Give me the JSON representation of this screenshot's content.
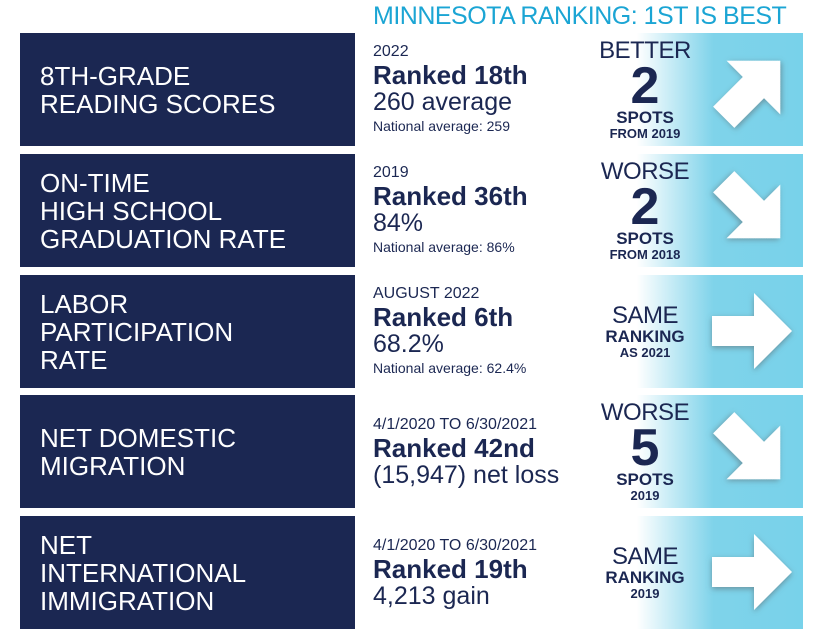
{
  "title": "MINNESOTA RANKING: 1ST IS BEST",
  "rows": [
    {
      "label": [
        "8TH-GRADE",
        "READING SCORES"
      ],
      "year": "2022",
      "rank": "Ranked 18th",
      "value": "260 average",
      "national": "National average: 259",
      "direction": "BETTER",
      "spots_num": "2",
      "spots_label": "SPOTS",
      "sub": "FROM 2019",
      "arrow": "arrow-up-right-icon"
    },
    {
      "label": [
        "ON-TIME",
        "HIGH SCHOOL",
        "GRADUATION RATE"
      ],
      "year": "2019",
      "rank": "Ranked 36th",
      "value": "84%",
      "national": "National average: 86%",
      "direction": "WORSE",
      "spots_num": "2",
      "spots_label": "SPOTS",
      "sub": "FROM 2018",
      "arrow": "arrow-down-right-icon"
    },
    {
      "label": [
        "LABOR",
        "PARTICIPATION",
        "RATE"
      ],
      "year": "AUGUST 2022",
      "rank": "Ranked 6th",
      "value": "68.2%",
      "national": "National average: 62.4%",
      "direction": "SAME",
      "spots_label": "RANKING",
      "sub": "AS 2021",
      "arrow": "arrow-right-icon"
    },
    {
      "label": [
        "NET DOMESTIC",
        "MIGRATION"
      ],
      "year": "4/1/2020 TO 6/30/2021",
      "rank": "Ranked 42nd",
      "value": "(15,947) net loss",
      "direction": "WORSE",
      "spots_num": "5",
      "spots_label": "SPOTS",
      "sub": "2019",
      "arrow": "arrow-down-right-icon"
    },
    {
      "label": [
        "NET",
        "INTERNATIONAL",
        "IMMIGRATION"
      ],
      "year": "4/1/2020 TO 6/30/2021",
      "rank": "Ranked 19th",
      "value": "4,213 gain",
      "direction": "SAME",
      "spots_label": "RANKING",
      "sub": "2019",
      "arrow": "arrow-right-icon"
    }
  ]
}
